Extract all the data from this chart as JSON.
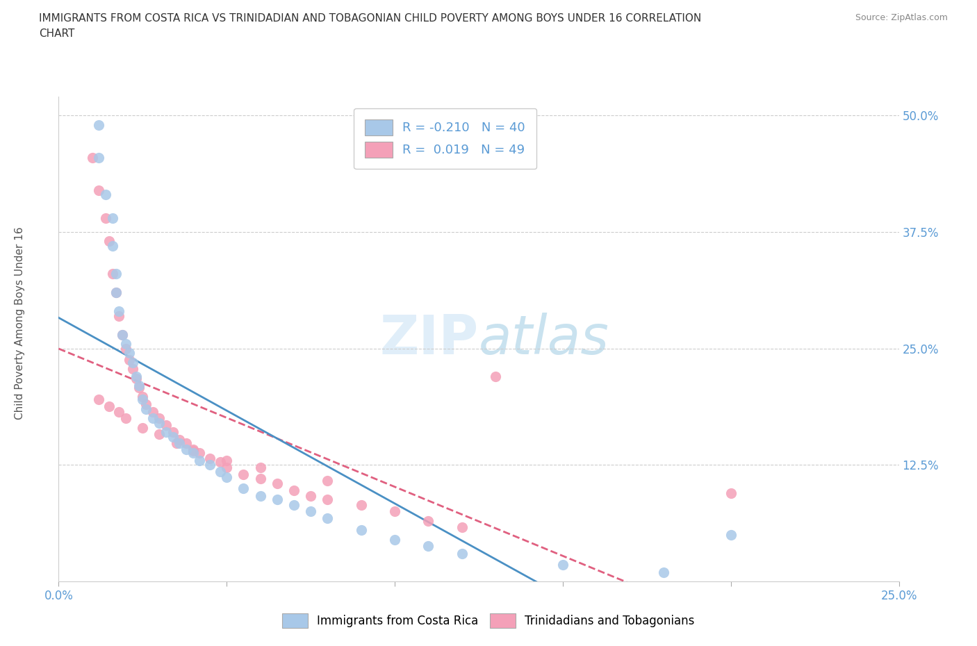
{
  "title": "IMMIGRANTS FROM COSTA RICA VS TRINIDADIAN AND TOBAGONIAN CHILD POVERTY AMONG BOYS UNDER 16 CORRELATION\nCHART",
  "source": "Source: ZipAtlas.com",
  "ylabel": "Child Poverty Among Boys Under 16",
  "xlim": [
    0.0,
    0.25
  ],
  "ylim": [
    0.0,
    0.52
  ],
  "xticks": [
    0.0,
    0.05,
    0.1,
    0.15,
    0.2,
    0.25
  ],
  "yticks": [
    0.0,
    0.125,
    0.25,
    0.375,
    0.5
  ],
  "ytick_labels": [
    "",
    "12.5%",
    "25.0%",
    "37.5%",
    "50.0%"
  ],
  "xtick_labels": [
    "0.0%",
    "",
    "",
    "",
    "",
    "25.0%"
  ],
  "r_costa_rica": -0.21,
  "n_costa_rica": 40,
  "r_trinidadian": 0.019,
  "n_trinidadian": 49,
  "color_costa_rica": "#a8c8e8",
  "color_trinidadian": "#f4a0b8",
  "line_color_costa_rica": "#4a90c4",
  "line_color_trinidadian": "#e06080",
  "costa_rica_x": [
    0.012,
    0.012,
    0.014,
    0.016,
    0.016,
    0.017,
    0.017,
    0.018,
    0.019,
    0.02,
    0.021,
    0.022,
    0.023,
    0.024,
    0.025,
    0.026,
    0.028,
    0.03,
    0.032,
    0.034,
    0.036,
    0.038,
    0.04,
    0.042,
    0.045,
    0.048,
    0.05,
    0.055,
    0.06,
    0.065,
    0.07,
    0.075,
    0.08,
    0.09,
    0.1,
    0.11,
    0.12,
    0.15,
    0.18,
    0.2
  ],
  "costa_rica_y": [
    0.49,
    0.455,
    0.415,
    0.39,
    0.36,
    0.33,
    0.31,
    0.29,
    0.265,
    0.255,
    0.245,
    0.235,
    0.22,
    0.21,
    0.195,
    0.185,
    0.175,
    0.17,
    0.16,
    0.155,
    0.148,
    0.142,
    0.138,
    0.13,
    0.125,
    0.118,
    0.112,
    0.1,
    0.092,
    0.088,
    0.082,
    0.075,
    0.068,
    0.055,
    0.045,
    0.038,
    0.03,
    0.018,
    0.01,
    0.05
  ],
  "trinidadian_x": [
    0.01,
    0.012,
    0.014,
    0.015,
    0.016,
    0.017,
    0.018,
    0.019,
    0.02,
    0.021,
    0.022,
    0.023,
    0.024,
    0.025,
    0.026,
    0.028,
    0.03,
    0.032,
    0.034,
    0.036,
    0.038,
    0.04,
    0.042,
    0.045,
    0.048,
    0.05,
    0.055,
    0.06,
    0.065,
    0.07,
    0.075,
    0.08,
    0.09,
    0.1,
    0.11,
    0.12,
    0.012,
    0.015,
    0.018,
    0.02,
    0.025,
    0.03,
    0.035,
    0.04,
    0.05,
    0.06,
    0.08,
    0.13,
    0.2
  ],
  "trinidadian_y": [
    0.455,
    0.42,
    0.39,
    0.365,
    0.33,
    0.31,
    0.285,
    0.265,
    0.25,
    0.238,
    0.228,
    0.218,
    0.208,
    0.198,
    0.19,
    0.182,
    0.175,
    0.168,
    0.16,
    0.152,
    0.148,
    0.142,
    0.138,
    0.132,
    0.128,
    0.122,
    0.115,
    0.11,
    0.105,
    0.098,
    0.092,
    0.088,
    0.082,
    0.075,
    0.065,
    0.058,
    0.195,
    0.188,
    0.182,
    0.175,
    0.165,
    0.158,
    0.148,
    0.14,
    0.13,
    0.122,
    0.108,
    0.22,
    0.095
  ]
}
